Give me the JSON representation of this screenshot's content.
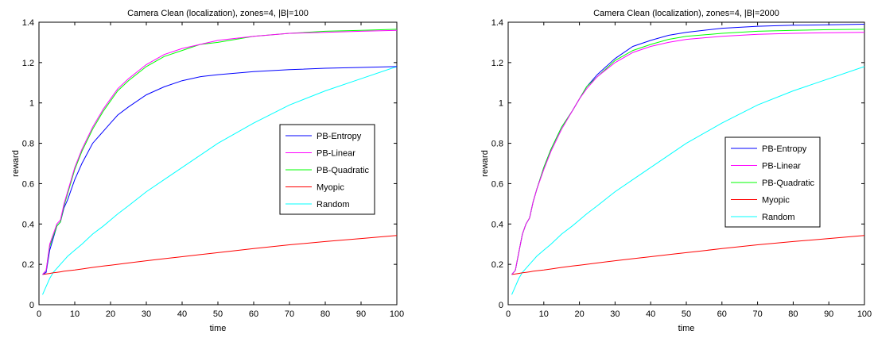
{
  "chart_data": [
    {
      "type": "line",
      "title": "Camera Clean (localization), zones=4, |B|=100",
      "xlabel": "time",
      "ylabel": "reward",
      "xlim": [
        0,
        100
      ],
      "ylim": [
        0,
        1.4
      ],
      "xticks": [
        0,
        10,
        20,
        30,
        40,
        50,
        60,
        70,
        80,
        90,
        100
      ],
      "yticks": [
        0,
        0.2,
        0.4,
        0.6,
        0.8,
        1,
        1.2,
        1.4
      ],
      "grid": false,
      "legend_position": "right",
      "x": [
        1,
        2,
        3,
        4,
        5,
        6,
        7,
        8,
        10,
        12,
        15,
        18,
        20,
        22,
        25,
        30,
        35,
        40,
        45,
        50,
        60,
        70,
        80,
        90,
        100
      ],
      "series": [
        {
          "name": "PB-Entropy",
          "color": "#0000ff",
          "values": [
            0.15,
            0.16,
            0.27,
            0.33,
            0.39,
            0.41,
            0.48,
            0.52,
            0.62,
            0.7,
            0.8,
            0.86,
            0.9,
            0.94,
            0.98,
            1.04,
            1.08,
            1.11,
            1.13,
            1.14,
            1.155,
            1.165,
            1.172,
            1.176,
            1.18
          ]
        },
        {
          "name": "PB-Linear",
          "color": "#ff00ff",
          "values": [
            0.15,
            0.17,
            0.3,
            0.35,
            0.4,
            0.42,
            0.5,
            0.56,
            0.68,
            0.77,
            0.88,
            0.97,
            1.02,
            1.07,
            1.12,
            1.19,
            1.24,
            1.27,
            1.29,
            1.31,
            1.33,
            1.345,
            1.35,
            1.355,
            1.36
          ]
        },
        {
          "name": "PB-Quadratic",
          "color": "#00ff00",
          "values": [
            0.15,
            0.17,
            0.29,
            0.34,
            0.39,
            0.41,
            0.49,
            0.55,
            0.67,
            0.76,
            0.87,
            0.96,
            1.01,
            1.06,
            1.11,
            1.18,
            1.23,
            1.26,
            1.29,
            1.3,
            1.33,
            1.345,
            1.355,
            1.36,
            1.365
          ]
        },
        {
          "name": "Myopic",
          "color": "#ff0000",
          "values": [
            0.15,
            0.152,
            0.155,
            0.158,
            0.16,
            0.163,
            0.166,
            0.168,
            0.172,
            0.177,
            0.185,
            0.192,
            0.196,
            0.2,
            0.207,
            0.218,
            0.228,
            0.238,
            0.248,
            0.258,
            0.278,
            0.297,
            0.313,
            0.328,
            0.343
          ]
        },
        {
          "name": "Random",
          "color": "#00ffff",
          "values": [
            0.05,
            0.09,
            0.13,
            0.16,
            0.18,
            0.2,
            0.22,
            0.24,
            0.27,
            0.3,
            0.35,
            0.39,
            0.42,
            0.45,
            0.49,
            0.56,
            0.62,
            0.68,
            0.74,
            0.8,
            0.9,
            0.99,
            1.06,
            1.12,
            1.18
          ]
        }
      ]
    },
    {
      "type": "line",
      "title": "Camera Clean (localization), zones=4, |B|=2000",
      "xlabel": "time",
      "ylabel": "reward",
      "xlim": [
        0,
        100
      ],
      "ylim": [
        0,
        1.4
      ],
      "xticks": [
        0,
        10,
        20,
        30,
        40,
        50,
        60,
        70,
        80,
        90,
        100
      ],
      "yticks": [
        0,
        0.2,
        0.4,
        0.6,
        0.8,
        1,
        1.2,
        1.4
      ],
      "grid": false,
      "legend_position": "right",
      "x": [
        1,
        2,
        3,
        4,
        5,
        6,
        7,
        8,
        10,
        12,
        15,
        18,
        20,
        22,
        25,
        30,
        35,
        40,
        45,
        50,
        60,
        70,
        80,
        90,
        100
      ],
      "series": [
        {
          "name": "PB-Entropy",
          "color": "#0000ff",
          "values": [
            0.15,
            0.17,
            0.26,
            0.35,
            0.4,
            0.43,
            0.51,
            0.57,
            0.68,
            0.77,
            0.88,
            0.96,
            1.02,
            1.08,
            1.14,
            1.22,
            1.28,
            1.31,
            1.335,
            1.35,
            1.37,
            1.38,
            1.385,
            1.387,
            1.39
          ]
        },
        {
          "name": "PB-Linear",
          "color": "#ff00ff",
          "values": [
            0.15,
            0.17,
            0.26,
            0.35,
            0.4,
            0.43,
            0.51,
            0.57,
            0.67,
            0.76,
            0.87,
            0.96,
            1.02,
            1.07,
            1.13,
            1.2,
            1.25,
            1.28,
            1.3,
            1.315,
            1.33,
            1.34,
            1.345,
            1.348,
            1.35
          ]
        },
        {
          "name": "PB-Quadratic",
          "color": "#00ff00",
          "values": [
            0.15,
            0.17,
            0.26,
            0.35,
            0.4,
            0.43,
            0.51,
            0.57,
            0.68,
            0.77,
            0.88,
            0.96,
            1.02,
            1.08,
            1.13,
            1.21,
            1.26,
            1.29,
            1.315,
            1.33,
            1.345,
            1.355,
            1.36,
            1.363,
            1.365
          ]
        },
        {
          "name": "Myopic",
          "color": "#ff0000",
          "values": [
            0.15,
            0.152,
            0.155,
            0.158,
            0.16,
            0.163,
            0.166,
            0.168,
            0.172,
            0.177,
            0.185,
            0.192,
            0.196,
            0.2,
            0.207,
            0.218,
            0.228,
            0.238,
            0.248,
            0.258,
            0.278,
            0.297,
            0.313,
            0.328,
            0.343
          ]
        },
        {
          "name": "Random",
          "color": "#00ffff",
          "values": [
            0.05,
            0.09,
            0.13,
            0.16,
            0.18,
            0.2,
            0.22,
            0.24,
            0.27,
            0.3,
            0.35,
            0.39,
            0.42,
            0.45,
            0.49,
            0.56,
            0.62,
            0.68,
            0.74,
            0.8,
            0.9,
            0.99,
            1.06,
            1.12,
            1.18
          ]
        }
      ]
    }
  ]
}
